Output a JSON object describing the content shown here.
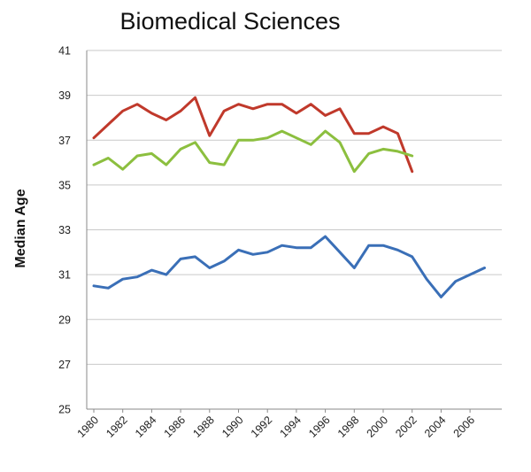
{
  "chart_data": {
    "type": "line",
    "title": "Biomedical Sciences",
    "xlabel": "",
    "ylabel": "Median Age",
    "ylim": [
      25,
      41
    ],
    "yticks": [
      25,
      27,
      29,
      31,
      33,
      35,
      37,
      39,
      41
    ],
    "xlim": [
      1980,
      2007
    ],
    "xticks": [
      1980,
      1982,
      1984,
      1986,
      1988,
      1990,
      1992,
      1994,
      1996,
      1998,
      2000,
      2002,
      2004,
      2006
    ],
    "x_tick_labels": [
      "1980",
      "1982",
      "1984",
      "1986",
      "1988",
      "1990",
      "1992",
      "1994",
      "1996",
      "1998",
      "2000",
      "2002",
      "2004",
      "2006"
    ],
    "grid": true,
    "series": [
      {
        "color": "#c0392b",
        "x": [
          1980,
          1981,
          1982,
          1983,
          1984,
          1985,
          1986,
          1987,
          1988,
          1989,
          1990,
          1991,
          1992,
          1993,
          1994,
          1995,
          1996,
          1997,
          1998,
          1999,
          2000,
          2001,
          2002
        ],
        "values": [
          37.1,
          37.7,
          38.3,
          38.6,
          38.2,
          37.9,
          38.3,
          38.9,
          37.2,
          38.3,
          38.6,
          38.4,
          38.6,
          38.6,
          38.2,
          38.6,
          38.1,
          38.4,
          37.3,
          37.3,
          37.6,
          37.3,
          35.6
        ]
      },
      {
        "color": "#8cbf3f",
        "x": [
          1980,
          1981,
          1982,
          1983,
          1984,
          1985,
          1986,
          1987,
          1988,
          1989,
          1990,
          1991,
          1992,
          1993,
          1994,
          1995,
          1996,
          1997,
          1998,
          1999,
          2000,
          2001,
          2002
        ],
        "values": [
          35.9,
          36.2,
          35.7,
          36.3,
          36.4,
          35.9,
          36.6,
          36.9,
          36.0,
          35.9,
          37.0,
          37.0,
          37.1,
          37.4,
          37.1,
          36.8,
          37.4,
          36.9,
          35.6,
          36.4,
          36.6,
          36.5,
          36.3
        ]
      },
      {
        "color": "#3a6fb7",
        "x": [
          1980,
          1981,
          1982,
          1983,
          1984,
          1985,
          1986,
          1987,
          1988,
          1989,
          1990,
          1991,
          1992,
          1993,
          1994,
          1995,
          1996,
          1997,
          1998,
          1999,
          2000,
          2001,
          2002,
          2003,
          2004,
          2005,
          2006,
          2007
        ],
        "values": [
          30.5,
          30.4,
          30.8,
          30.9,
          31.2,
          31.0,
          31.7,
          31.8,
          31.3,
          31.6,
          32.1,
          31.9,
          32.0,
          32.3,
          32.2,
          32.2,
          32.7,
          32.0,
          31.3,
          32.3,
          32.3,
          32.1,
          31.8,
          30.8,
          30.0,
          30.7,
          31.0,
          31.3
        ]
      }
    ]
  }
}
